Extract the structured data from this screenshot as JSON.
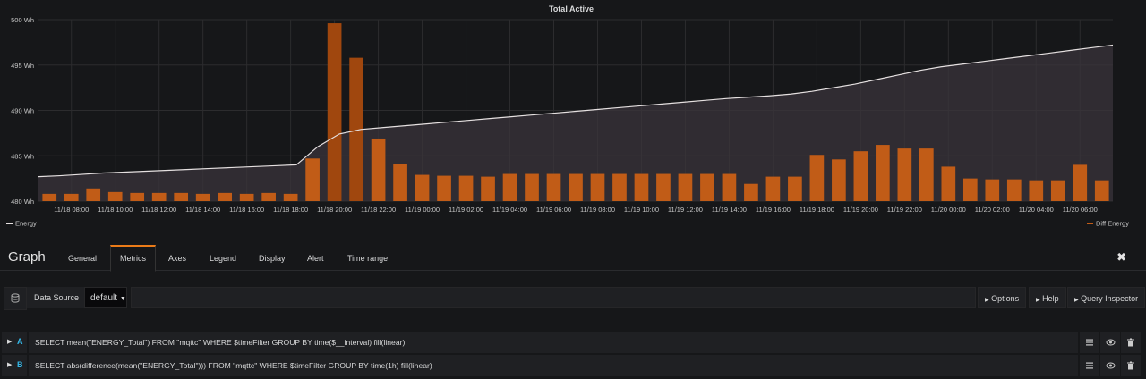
{
  "chart_data": {
    "type": "bar",
    "title": "Total Active",
    "y_ticks": [
      "500 Wh",
      "495 Wh",
      "490 Wh",
      "485 Wh",
      "480 Wh"
    ],
    "ylim": [
      480,
      500
    ],
    "x_ticks": [
      "11/18 08:00",
      "11/18 10:00",
      "11/18 12:00",
      "11/18 14:00",
      "11/18 16:00",
      "11/18 18:00",
      "11/18 20:00",
      "11/18 22:00",
      "11/19 00:00",
      "11/19 02:00",
      "11/19 04:00",
      "11/19 06:00",
      "11/19 08:00",
      "11/19 10:00",
      "11/19 12:00",
      "11/19 14:00",
      "11/19 16:00",
      "11/19 18:00",
      "11/19 20:00",
      "11/19 22:00",
      "11/20 00:00",
      "11/20 02:00",
      "11/20 04:00",
      "11/20 06:00"
    ],
    "x_start_hour": 7,
    "grid": true,
    "series": [
      {
        "name": "Diff Energy",
        "type": "bar",
        "color": "#c15c17",
        "values": [
          0.8,
          0.8,
          1.4,
          1.0,
          0.9,
          0.9,
          0.9,
          0.8,
          0.9,
          0.8,
          0.9,
          0.8,
          4.7,
          19.6,
          15.8,
          6.9,
          4.1,
          2.9,
          2.8,
          2.8,
          2.7,
          3.0,
          3.0,
          3.0,
          3.0,
          3.0,
          3.0,
          3.0,
          3.0,
          3.0,
          3.0,
          3.0,
          1.9,
          2.7,
          2.7,
          5.1,
          4.6,
          5.5,
          6.2,
          5.8,
          5.8,
          3.8,
          2.5,
          2.4,
          2.4,
          2.3,
          2.3,
          4.0,
          2.3
        ]
      },
      {
        "name": "Energy",
        "type": "line",
        "color": "#e5e0e0",
        "values": [
          482.7,
          482.8,
          482.95,
          483.1,
          483.2,
          483.3,
          483.4,
          483.5,
          483.6,
          483.7,
          483.8,
          483.9,
          484.0,
          486.0,
          487.4,
          487.9,
          488.1,
          488.3,
          488.5,
          488.7,
          488.9,
          489.1,
          489.3,
          489.5,
          489.7,
          489.9,
          490.1,
          490.3,
          490.5,
          490.7,
          490.9,
          491.1,
          491.3,
          491.45,
          491.6,
          491.8,
          492.1,
          492.5,
          492.9,
          493.4,
          493.9,
          494.4,
          494.8,
          495.1,
          495.4,
          495.7,
          496.0,
          496.3,
          496.6,
          496.9,
          497.2
        ]
      }
    ],
    "legend": {
      "placement": "bottom"
    }
  },
  "editor": {
    "title": "Graph",
    "tabs": [
      {
        "label": "General",
        "active": false
      },
      {
        "label": "Metrics",
        "active": true
      },
      {
        "label": "Axes",
        "active": false
      },
      {
        "label": "Legend",
        "active": false
      },
      {
        "label": "Display",
        "active": false
      },
      {
        "label": "Alert",
        "active": false
      },
      {
        "label": "Time range",
        "active": false
      }
    ],
    "close_icon": "close-icon"
  },
  "datasource": {
    "label": "Data Source",
    "value": "default",
    "buttons": {
      "options": "Options",
      "help": "Help",
      "inspector": "Query Inspector"
    }
  },
  "queries": [
    {
      "letter": "A",
      "text": "SELECT mean(\"ENERGY_Total\") FROM \"mqttc\" WHERE $timeFilter GROUP BY time($__interval) fill(linear)"
    },
    {
      "letter": "B",
      "text": "SELECT abs(difference(mean(\"ENERGY_Total\"))) FROM \"mqttc\" WHERE $timeFilter GROUP BY time(1h) fill(linear)"
    }
  ],
  "colors": {
    "accent": "#eb7b18",
    "query_letter": "#33b5e5",
    "bar": "#c15c17",
    "bar_highlight": "#a0470e"
  }
}
